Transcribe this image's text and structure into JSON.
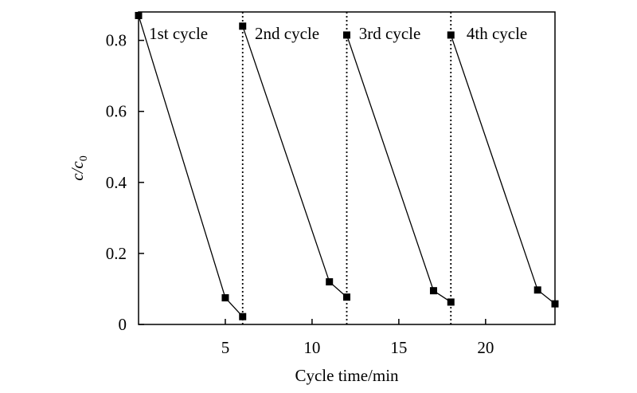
{
  "chart_data": {
    "type": "line",
    "title": "",
    "xlabel": "Cycle time/min",
    "ylabel": {
      "main": "c",
      "sep": "/c",
      "sub": "0"
    },
    "xlim": [
      0,
      24
    ],
    "ylim": [
      0,
      0.88
    ],
    "xticks": [
      5,
      10,
      15,
      20
    ],
    "yticks": [
      0,
      0.2,
      0.4,
      0.6,
      0.8
    ],
    "ytick_labels": [
      "0",
      "0.2",
      "0.4",
      "0.6",
      "0.8"
    ],
    "dividers": [
      6,
      12,
      18
    ],
    "cycle_labels": [
      {
        "text": "1st cycle",
        "x": 0.6
      },
      {
        "text": "2nd cycle",
        "x": 6.7
      },
      {
        "text": "3rd cycle",
        "x": 12.7
      },
      {
        "text": "4th cycle",
        "x": 18.9
      }
    ],
    "series": [
      {
        "name": "1st cycle",
        "points": [
          [
            0,
            0.87
          ],
          [
            5,
            0.075
          ],
          [
            6,
            0.022
          ]
        ]
      },
      {
        "name": "2nd cycle",
        "points": [
          [
            6,
            0.84
          ],
          [
            11,
            0.12
          ],
          [
            12,
            0.077
          ]
        ]
      },
      {
        "name": "3rd cycle",
        "points": [
          [
            12,
            0.815
          ],
          [
            17,
            0.095
          ],
          [
            18,
            0.063
          ]
        ]
      },
      {
        "name": "4th cycle",
        "points": [
          [
            18,
            0.815
          ],
          [
            23,
            0.097
          ],
          [
            24,
            0.058
          ]
        ]
      }
    ]
  }
}
